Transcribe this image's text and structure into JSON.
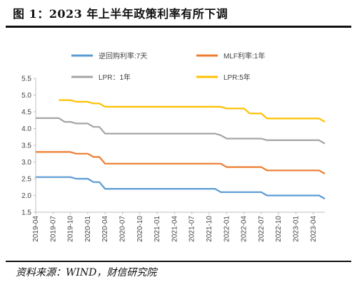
{
  "title": "图 1：2023 年上半年政策利率有所下调",
  "source": "资料来源：WIND，财信研究院",
  "chart_data": {
    "type": "line",
    "title": "",
    "xlabel": "",
    "ylabel": "",
    "ylim": [
      1.5,
      5.5
    ],
    "y_ticks": [
      "1.5",
      "2.0",
      "2.5",
      "3.0",
      "3.5",
      "4.0",
      "4.5",
      "5.0",
      "5.5"
    ],
    "x_ticks": [
      "2019-04",
      "2019-07",
      "2019-10",
      "2020-01",
      "2020-04",
      "2020-07",
      "2020-10",
      "2021-01",
      "2021-04",
      "2021-07",
      "2021-10",
      "2022-01",
      "2022-04",
      "2022-07",
      "2022-10",
      "2023-01",
      "2023-04"
    ],
    "x_range": [
      "2019-04",
      "2023-06"
    ],
    "grid": false,
    "legend_position": "top",
    "series": [
      {
        "name": "逆回购利率:7天",
        "color": "#5B9BD5",
        "points": [
          [
            "2019-04",
            2.55
          ],
          [
            "2019-10",
            2.55
          ],
          [
            "2019-11",
            2.5
          ],
          [
            "2020-01",
            2.5
          ],
          [
            "2020-02",
            2.4
          ],
          [
            "2020-03",
            2.4
          ],
          [
            "2020-04",
            2.2
          ],
          [
            "2021-11",
            2.2
          ],
          [
            "2021-12",
            2.1
          ],
          [
            "2022-07",
            2.1
          ],
          [
            "2022-08",
            2.0
          ],
          [
            "2023-05",
            2.0
          ],
          [
            "2023-06",
            1.9
          ]
        ]
      },
      {
        "name": "MLF利率:1年",
        "color": "#ED7D31",
        "points": [
          [
            "2019-04",
            3.3
          ],
          [
            "2019-10",
            3.3
          ],
          [
            "2019-11",
            3.25
          ],
          [
            "2020-01",
            3.25
          ],
          [
            "2020-02",
            3.15
          ],
          [
            "2020-03",
            3.15
          ],
          [
            "2020-04",
            2.95
          ],
          [
            "2021-12",
            2.95
          ],
          [
            "2022-01",
            2.85
          ],
          [
            "2022-07",
            2.85
          ],
          [
            "2022-08",
            2.75
          ],
          [
            "2023-05",
            2.75
          ],
          [
            "2023-06",
            2.65
          ]
        ]
      },
      {
        "name": "LPR：1年",
        "color": "#A5A5A5",
        "points": [
          [
            "2019-04",
            4.31
          ],
          [
            "2019-08",
            4.31
          ],
          [
            "2019-09",
            4.2
          ],
          [
            "2019-10",
            4.2
          ],
          [
            "2019-11",
            4.15
          ],
          [
            "2020-01",
            4.15
          ],
          [
            "2020-02",
            4.05
          ],
          [
            "2020-03",
            4.05
          ],
          [
            "2020-04",
            3.85
          ],
          [
            "2021-11",
            3.85
          ],
          [
            "2021-12",
            3.8
          ],
          [
            "2022-01",
            3.7
          ],
          [
            "2022-07",
            3.7
          ],
          [
            "2022-08",
            3.65
          ],
          [
            "2023-05",
            3.65
          ],
          [
            "2023-06",
            3.55
          ]
        ]
      },
      {
        "name": "LPR:5年",
        "color": "#FFC000",
        "points": [
          [
            "2019-08",
            4.85
          ],
          [
            "2019-10",
            4.85
          ],
          [
            "2019-11",
            4.8
          ],
          [
            "2020-01",
            4.8
          ],
          [
            "2020-02",
            4.75
          ],
          [
            "2020-03",
            4.75
          ],
          [
            "2020-04",
            4.65
          ],
          [
            "2021-12",
            4.65
          ],
          [
            "2022-01",
            4.6
          ],
          [
            "2022-04",
            4.6
          ],
          [
            "2022-05",
            4.45
          ],
          [
            "2022-07",
            4.45
          ],
          [
            "2022-08",
            4.3
          ],
          [
            "2023-05",
            4.3
          ],
          [
            "2023-06",
            4.2
          ]
        ]
      }
    ]
  }
}
